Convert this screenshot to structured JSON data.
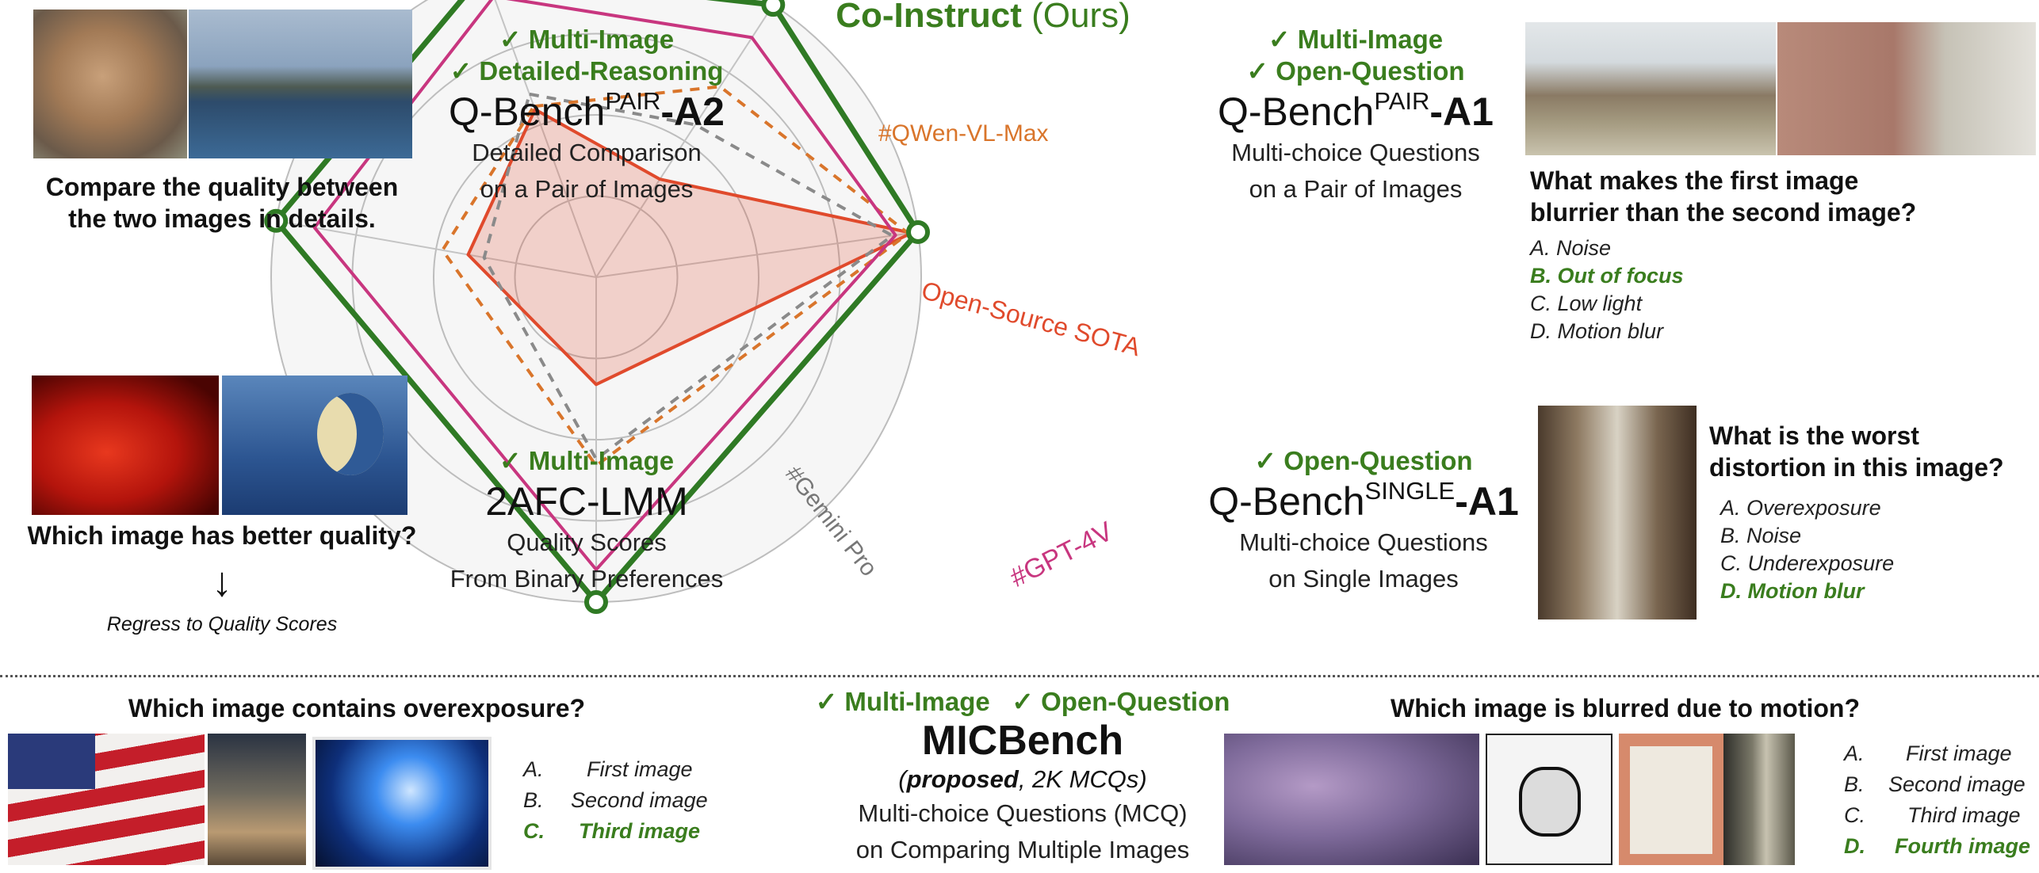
{
  "title": {
    "main": "Co-Instruct",
    "suffix": "(Ours)"
  },
  "radar": {
    "labels": {
      "qwen": "#QWen-VL-Max",
      "gemini": "#Gemini Pro",
      "gpt4v": "#GPT-4V",
      "opensource": "Open-Source SOTA"
    },
    "colors": {
      "coinstruct": "#2f7a24",
      "gpt4v": "#c8367f",
      "qwen": "#d9752b",
      "gemini": "#8a8a8a",
      "opensource": "#e04a2c",
      "fill": "#eeeeee"
    }
  },
  "pair_a2": {
    "tags": [
      "✓ Multi-Image",
      "✓ Detailed-Reasoning"
    ],
    "name": "Q-Bench",
    "sup": "PAIR",
    "suffix": "-A2",
    "desc": [
      "Detailed Comparison",
      "on a Pair of Images"
    ],
    "question": [
      "Compare the quality between",
      "the two images in details."
    ]
  },
  "pair_a1": {
    "tags": [
      "✓ Multi-Image",
      "✓ Open-Question"
    ],
    "name": "Q-Bench",
    "sup": "PAIR",
    "suffix": "-A1",
    "desc": [
      "Multi-choice Questions",
      "on a Pair of Images"
    ],
    "question": [
      "What makes the first image",
      "blurrier than the second image?"
    ],
    "options": [
      "A. Noise",
      "B. Out of focus",
      "C. Low light",
      "D. Motion blur"
    ]
  },
  "afc": {
    "tags": [
      "✓ Multi-Image"
    ],
    "name": "2AFC-LMM",
    "desc": [
      "Quality Scores",
      "From Binary Preferences"
    ],
    "question": "Which image has better quality?",
    "arrow": "↓",
    "note": "Regress to Quality Scores"
  },
  "single_a1": {
    "tags": [
      "✓ Open-Question"
    ],
    "name": "Q-Bench",
    "sup": "SINGLE",
    "suffix": "-A1",
    "desc": [
      "Multi-choice Questions",
      "on Single Images"
    ],
    "question": [
      "What is the worst",
      "distortion in this image?"
    ],
    "options": [
      "A. Overexposure",
      "B. Noise",
      "C. Underexposure",
      "D. Motion blur"
    ]
  },
  "micbench": {
    "tags": [
      "✓ Multi-Image",
      "✓ Open-Question"
    ],
    "name": "MICBench",
    "proposed": "proposed",
    "count": ", 2K MCQs)",
    "desc": [
      "Multi-choice Questions (MCQ)",
      "on Comparing Multiple Images"
    ]
  },
  "overexposure": {
    "question": "Which image contains overexposure?",
    "options": [
      {
        "letter": "A.",
        "text": "First image"
      },
      {
        "letter": "B.",
        "text": "Second image"
      },
      {
        "letter": "C.",
        "text": "Third image"
      }
    ]
  },
  "motion": {
    "question": "Which image is blurred due to motion?",
    "options": [
      {
        "letter": "A.",
        "text": "First image"
      },
      {
        "letter": "B.",
        "text": "Second image"
      },
      {
        "letter": "C.",
        "text": "Third image"
      },
      {
        "letter": "D.",
        "text": "Fourth image"
      }
    ]
  }
}
